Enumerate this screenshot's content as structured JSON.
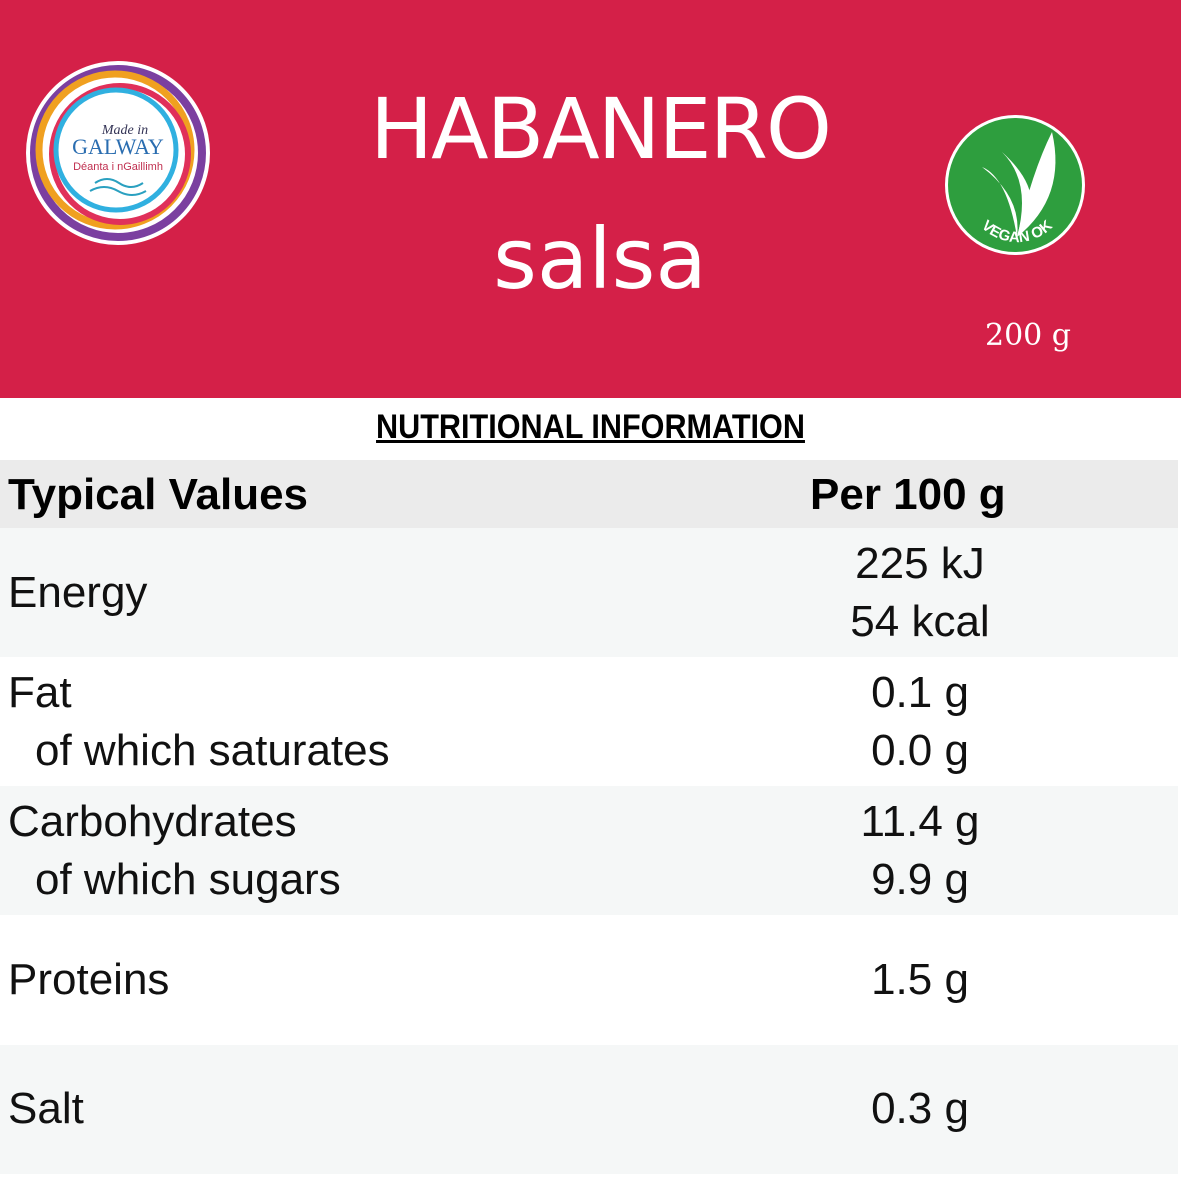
{
  "header": {
    "title": "HABANERO",
    "subtitle": "salsa",
    "weight": "200 g",
    "logo": {
      "line1": "Made in",
      "line2": "GALWAY",
      "line3": "Déanta i nGaillimh"
    },
    "badge": "VEGAN OK"
  },
  "section_title": "NUTRITIONAL INFORMATION",
  "table": {
    "columns": [
      "Typical Values",
      "Per 100 g"
    ],
    "rows": [
      {
        "labels": [
          "Energy"
        ],
        "values": [
          "225 kJ",
          "54 kcal"
        ]
      },
      {
        "labels": [
          "Fat",
          "of which saturates"
        ],
        "values": [
          "0.1 g",
          "0.0 g"
        ]
      },
      {
        "labels": [
          "Carbohydrates",
          "of which sugars"
        ],
        "values": [
          "11.4 g",
          "9.9 g"
        ]
      },
      {
        "labels": [
          "Proteins"
        ],
        "values": [
          "1.5 g"
        ]
      },
      {
        "labels": [
          "Salt"
        ],
        "values": [
          "0.3 g"
        ]
      }
    ]
  }
}
